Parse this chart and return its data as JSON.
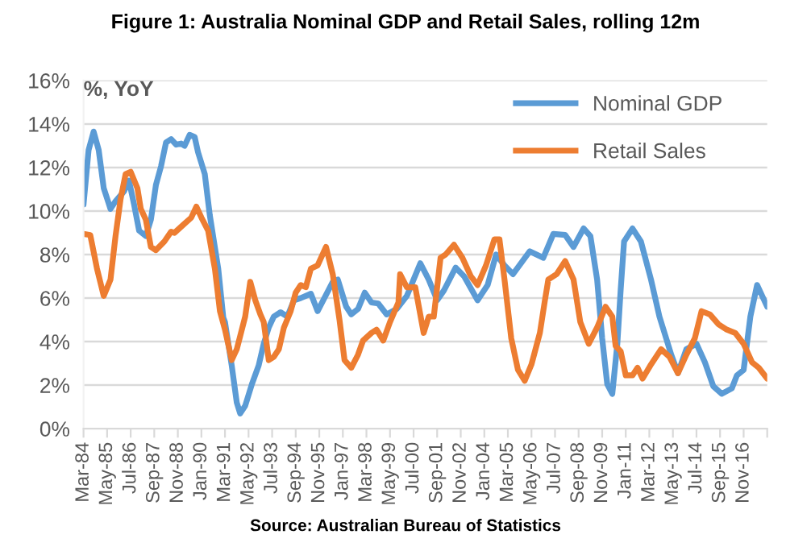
{
  "chart_data": {
    "type": "line",
    "title": "Figure 1: Australia Nominal GDP and Retail Sales, rolling 12m",
    "ylabel": "%, YoY",
    "annotations": [
      "Source: Australian Bureau of Statistics"
    ],
    "series": [
      {
        "name": "Nominal GDP",
        "color": "#5b9bd5",
        "x": [
          "1984-03",
          "1984-06",
          "1984-09",
          "1984-12",
          "1985-03",
          "1985-07",
          "1985-10",
          "1986-03",
          "1986-06",
          "1986-09",
          "1986-12",
          "1987-04",
          "1987-07",
          "1987-10",
          "1988-01",
          "1988-04",
          "1988-07",
          "1988-10",
          "1989-01",
          "1989-03",
          "1989-06",
          "1989-09",
          "1989-11",
          "1990-03",
          "1990-06",
          "1990-11",
          "1991-02",
          "1991-03",
          "1991-07",
          "1991-10",
          "1991-12",
          "1992-03",
          "1992-07",
          "1992-11",
          "1993-02",
          "1993-05",
          "1993-08",
          "1993-12",
          "1994-04",
          "1994-08",
          "1994-12",
          "1995-06",
          "1995-10",
          "1996-02",
          "1996-07",
          "1996-10",
          "1997-03",
          "1997-06",
          "1997-10",
          "1998-02",
          "1998-06",
          "1998-10",
          "1999-03",
          "1999-09",
          "2000-03",
          "2000-11",
          "2001-04",
          "2001-09",
          "2002-01",
          "2002-08",
          "2003-01",
          "2003-09",
          "2004-03",
          "2004-08",
          "2005-01",
          "2005-06",
          "2006-04",
          "2006-12",
          "2007-06",
          "2008-01",
          "2008-06",
          "2008-12",
          "2009-04",
          "2009-08",
          "2009-11",
          "2010-02",
          "2010-05",
          "2010-08",
          "2010-10",
          "2010-12",
          "2011-05",
          "2011-10",
          "2012-04",
          "2012-09",
          "2012-11",
          "2013-04",
          "2013-08",
          "2014-01",
          "2014-07",
          "2014-12",
          "2015-05",
          "2015-10",
          "2016-04",
          "2016-07",
          "2016-11",
          "2017-03",
          "2017-07",
          "2018-01"
        ],
        "values": [
          10.3,
          12.8,
          13.65,
          12.8,
          11.05,
          10.1,
          10.45,
          10.9,
          11.4,
          10.3,
          9.1,
          8.85,
          9.6,
          11.2,
          12.05,
          13.15,
          13.3,
          13.05,
          13.1,
          13.0,
          13.5,
          13.4,
          12.7,
          11.7,
          9.8,
          7.35,
          5.1,
          4.9,
          2.9,
          1.2,
          0.7,
          1.05,
          2.05,
          2.9,
          3.9,
          4.65,
          5.15,
          5.35,
          5.15,
          5.9,
          6.0,
          6.2,
          5.4,
          6.0,
          6.75,
          6.85,
          5.6,
          5.25,
          5.5,
          6.25,
          5.8,
          5.75,
          5.25,
          5.5,
          6.1,
          7.6,
          6.85,
          5.9,
          6.35,
          7.4,
          7.0,
          5.9,
          6.6,
          8.0,
          7.5,
          7.1,
          8.15,
          7.85,
          8.95,
          8.9,
          8.35,
          9.2,
          8.85,
          6.85,
          4.15,
          2.05,
          1.6,
          3.9,
          6.4,
          8.6,
          9.2,
          8.6,
          6.85,
          5.15,
          4.65,
          3.4,
          2.55,
          3.65,
          3.9,
          3.05,
          1.95,
          1.6,
          1.85,
          2.45,
          2.7,
          5.15,
          6.6,
          5.6
        ]
      },
      {
        "name": "Retail Sales",
        "color": "#ed7d31",
        "x": [
          "1984-03",
          "1984-07",
          "1984-11",
          "1985-03",
          "1985-07",
          "1985-10",
          "1986-01",
          "1986-04",
          "1986-07",
          "1986-11",
          "1987-01",
          "1987-04",
          "1987-07",
          "1987-10",
          "1988-03",
          "1988-07",
          "1988-09",
          "1989-02",
          "1989-07",
          "1989-10",
          "1990-01",
          "1990-05",
          "1990-09",
          "1990-12",
          "1991-03",
          "1991-07",
          "1991-10",
          "1992-03",
          "1992-06",
          "1992-09",
          "1992-12",
          "1993-02",
          "1993-05",
          "1993-08",
          "1993-11",
          "1994-02",
          "1994-06",
          "1994-09",
          "1994-12",
          "1995-03",
          "1995-06",
          "1995-10",
          "1996-03",
          "1996-07",
          "1996-11",
          "1997-02",
          "1997-06",
          "1997-10",
          "1998-01",
          "1998-06",
          "1998-09",
          "1999-01",
          "1999-05",
          "1999-10",
          "1999-11",
          "2000-03",
          "2000-08",
          "2001-01",
          "2001-04",
          "2001-07",
          "2001-11",
          "2002-02",
          "2002-07",
          "2002-12",
          "2003-05",
          "2003-09",
          "2004-02",
          "2004-07",
          "2004-10",
          "2005-01",
          "2005-05",
          "2005-09",
          "2006-01",
          "2006-05",
          "2006-10",
          "2007-01",
          "2007-03",
          "2007-08",
          "2008-01",
          "2008-06",
          "2008-10",
          "2009-03",
          "2009-08",
          "2010-01",
          "2010-05",
          "2010-07",
          "2010-10",
          "2011-01",
          "2011-05",
          "2011-08",
          "2011-11",
          "2012-04",
          "2012-10",
          "2013-03",
          "2013-08",
          "2014-01",
          "2014-06",
          "2014-10",
          "2015-03",
          "2015-08",
          "2016-01",
          "2016-06",
          "2016-11",
          "2017-04",
          "2017-08",
          "2018-01"
        ],
        "values": [
          8.95,
          8.9,
          7.35,
          6.1,
          6.85,
          8.85,
          10.55,
          11.7,
          11.8,
          11.05,
          10.1,
          9.6,
          8.35,
          8.2,
          8.6,
          9.05,
          9.0,
          9.35,
          9.7,
          10.2,
          9.7,
          9.1,
          7.35,
          5.4,
          4.55,
          3.15,
          3.65,
          5.15,
          6.75,
          5.9,
          5.25,
          4.9,
          3.15,
          3.3,
          3.65,
          4.65,
          5.4,
          6.25,
          6.6,
          6.5,
          7.35,
          7.5,
          8.35,
          7.1,
          5.0,
          3.15,
          2.8,
          3.4,
          4.05,
          4.4,
          4.55,
          4.05,
          4.9,
          5.8,
          7.1,
          6.5,
          6.5,
          4.4,
          5.15,
          5.15,
          7.85,
          8.0,
          8.45,
          7.85,
          7.0,
          6.6,
          7.5,
          8.7,
          8.7,
          6.85,
          4.15,
          2.7,
          2.2,
          2.95,
          4.4,
          5.9,
          6.85,
          7.1,
          7.7,
          6.85,
          4.9,
          3.9,
          4.65,
          5.6,
          5.15,
          3.8,
          3.55,
          2.45,
          2.45,
          2.8,
          2.3,
          2.95,
          3.65,
          3.3,
          2.55,
          3.4,
          4.15,
          5.4,
          5.25,
          4.8,
          4.55,
          4.4,
          3.9,
          3.05,
          2.8,
          2.3
        ]
      }
    ],
    "xlim": [
      "1984-03",
      "2018-01"
    ],
    "xticks": [
      {
        "value": "1984-03",
        "label": "Mar-84"
      },
      {
        "value": "1985-05",
        "label": "May-85"
      },
      {
        "value": "1986-07",
        "label": "Jul-86"
      },
      {
        "value": "1987-09",
        "label": "Sep-87"
      },
      {
        "value": "1988-11",
        "label": "Nov-88"
      },
      {
        "value": "1990-01",
        "label": "Jan-90"
      },
      {
        "value": "1991-03",
        "label": "Mar-91"
      },
      {
        "value": "1992-05",
        "label": "May-92"
      },
      {
        "value": "1993-07",
        "label": "Jul-93"
      },
      {
        "value": "1994-09",
        "label": "Sep-94"
      },
      {
        "value": "1995-11",
        "label": "Nov-95"
      },
      {
        "value": "1997-01",
        "label": "Jan-97"
      },
      {
        "value": "1998-03",
        "label": "Mar-98"
      },
      {
        "value": "1999-05",
        "label": "May-99"
      },
      {
        "value": "2000-07",
        "label": "Jul-00"
      },
      {
        "value": "2001-09",
        "label": "Sep-01"
      },
      {
        "value": "2002-11",
        "label": "Nov-02"
      },
      {
        "value": "2004-01",
        "label": "Jan-04"
      },
      {
        "value": "2005-03",
        "label": "Mar-05"
      },
      {
        "value": "2006-05",
        "label": "May-06"
      },
      {
        "value": "2007-07",
        "label": "Jul-07"
      },
      {
        "value": "2008-09",
        "label": "Sep-08"
      },
      {
        "value": "2009-11",
        "label": "Nov-09"
      },
      {
        "value": "2011-01",
        "label": "Jan-11"
      },
      {
        "value": "2012-03",
        "label": "Mar-12"
      },
      {
        "value": "2013-05",
        "label": "May-13"
      },
      {
        "value": "2014-07",
        "label": "Jul-14"
      },
      {
        "value": "2015-09",
        "label": "Sep-15"
      },
      {
        "value": "2016-11",
        "label": "Nov-16"
      },
      {
        "value": "2018-01",
        "label": null
      }
    ],
    "ylim": [
      0,
      16
    ],
    "yticks": [
      {
        "value": 0,
        "label": "0%"
      },
      {
        "value": 2,
        "label": "2%"
      },
      {
        "value": 4,
        "label": "4%"
      },
      {
        "value": 6,
        "label": "6%"
      },
      {
        "value": 8,
        "label": "8%"
      },
      {
        "value": 10,
        "label": "10%"
      },
      {
        "value": 12,
        "label": "12%"
      },
      {
        "value": 14,
        "label": "14%"
      },
      {
        "value": 16,
        "label": "16%"
      }
    ],
    "grid": "y",
    "legend": "top right",
    "marker": "none",
    "line_style": "solid"
  }
}
